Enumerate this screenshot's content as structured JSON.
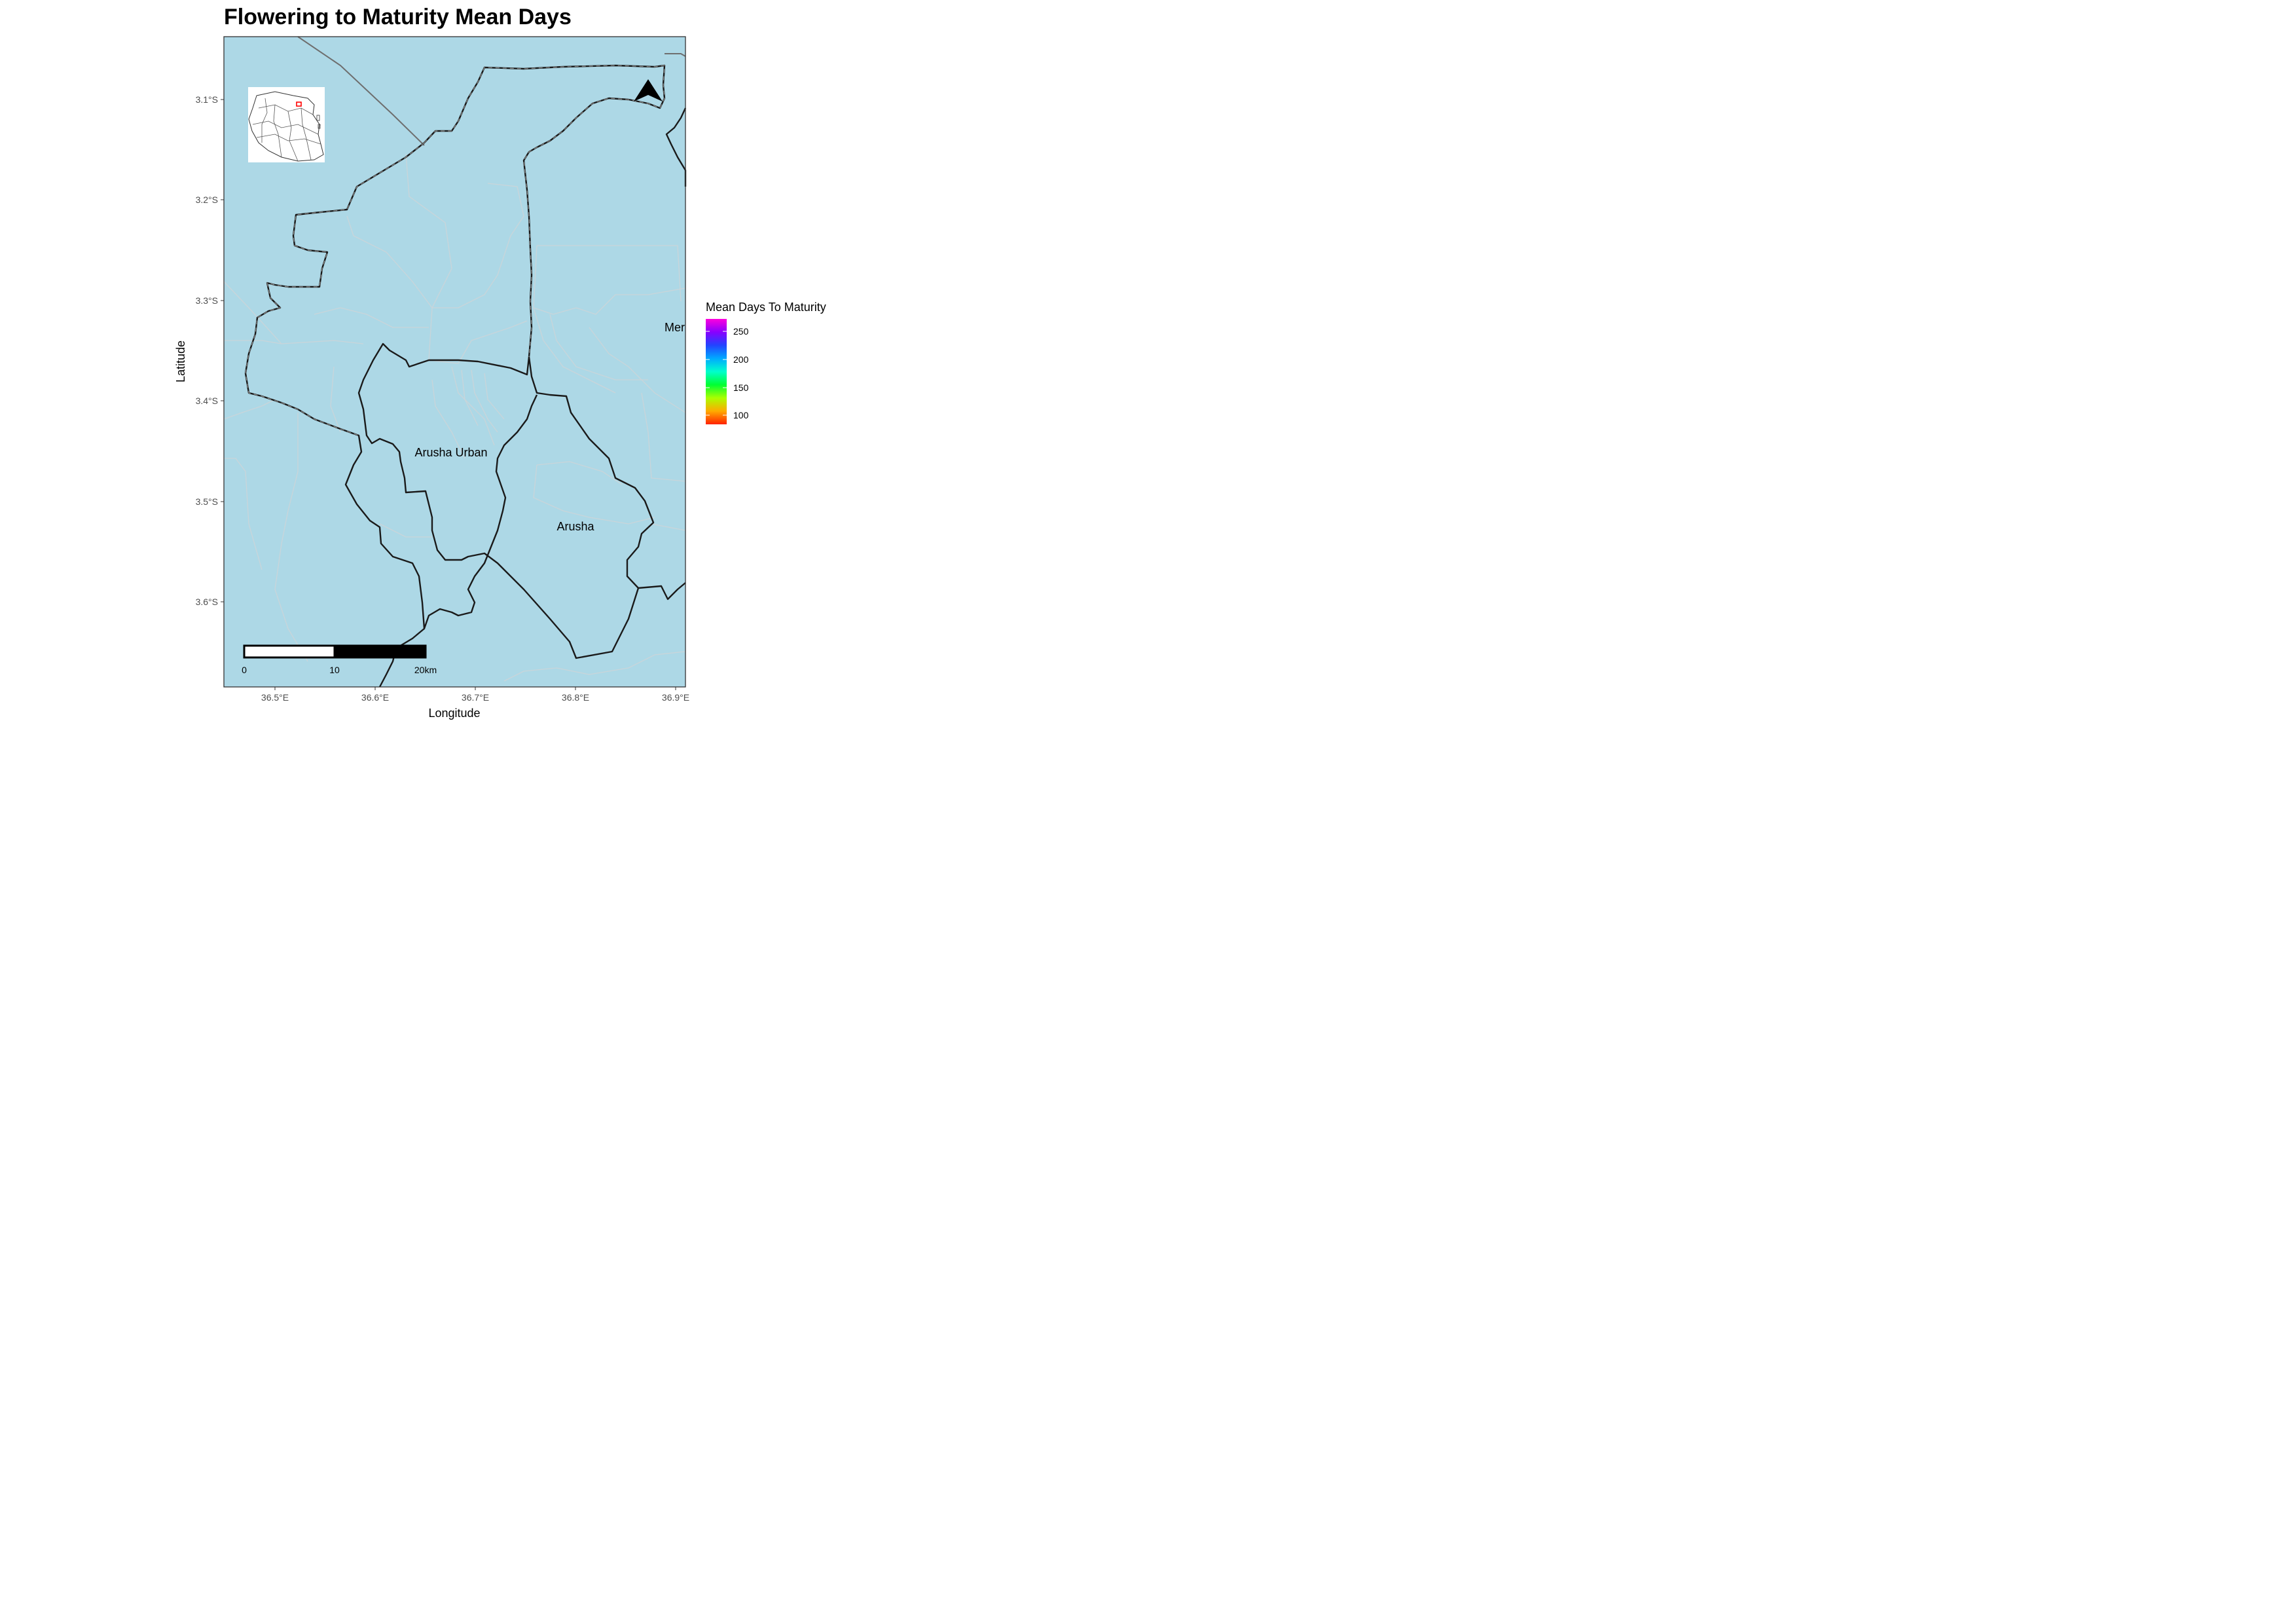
{
  "title": "Flowering to Maturity Mean Days",
  "axes": {
    "x_label": "Longitude",
    "y_label": "Latitude",
    "x_ticks": [
      "36.5°E",
      "36.6°E",
      "36.7°E",
      "36.8°E",
      "36.9°E"
    ],
    "y_ticks": [
      "3.1°S",
      "3.2°S",
      "3.3°S",
      "3.4°S",
      "3.5°S",
      "3.6°S"
    ]
  },
  "places": {
    "arusha_urban": "Arusha Urban",
    "arusha": "Arusha",
    "meru_partial": "Mer"
  },
  "legend": {
    "title": "Mean Days To Maturity",
    "ticks": [
      "250",
      "200",
      "150",
      "100"
    ],
    "colors": [
      "#ff00dd",
      "#8800ff",
      "#2244ff",
      "#00aaff",
      "#00ffcc",
      "#00ff33",
      "#aaff00",
      "#ffaa00",
      "#ff2200"
    ]
  },
  "scale_bar": {
    "labels": [
      "0",
      "10",
      "20km"
    ]
  },
  "colors": {
    "water_fill": "#add8e6",
    "panel_border": "#333333",
    "inset_highlight": "#ff0000"
  },
  "icons": {
    "north_arrow": "north-arrow-icon",
    "inset_map": "tanzania-inset-icon"
  }
}
